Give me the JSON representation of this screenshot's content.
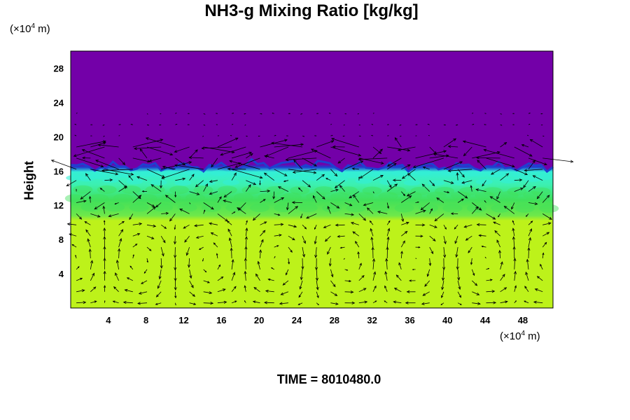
{
  "chart_data": {
    "type": "heatmap",
    "title": "NH3-g Mixing Ratio [kg/kg]",
    "ylabel": "Height",
    "y_unit": {
      "prefix": "(×10",
      "exp": "4",
      "suffix": " m)"
    },
    "x_unit": {
      "prefix": "(×10",
      "exp": "4",
      "suffix": " m)"
    },
    "x_ticks": [
      4,
      8,
      12,
      16,
      20,
      24,
      28,
      32,
      36,
      40,
      44,
      48
    ],
    "y_ticks": [
      4,
      8,
      12,
      16,
      20,
      24,
      28
    ],
    "xlim": [
      0,
      51.2
    ],
    "ylim": [
      0,
      30
    ],
    "colors": {
      "upper": "#7300a8",
      "boundary": "#1f3fd0",
      "cyan": "#33efd6",
      "green": "#40e05a",
      "lower": "#bdf21a"
    },
    "layers": [
      {
        "name": "upper",
        "y_range": [
          16.5,
          30
        ]
      },
      {
        "name": "cyan",
        "y_range": [
          14.5,
          16.5
        ]
      },
      {
        "name": "green",
        "y_range": [
          10.5,
          14.5
        ]
      },
      {
        "name": "lower",
        "y_range": [
          0,
          10.5
        ]
      }
    ],
    "time": "TIME = 8010480.0"
  }
}
